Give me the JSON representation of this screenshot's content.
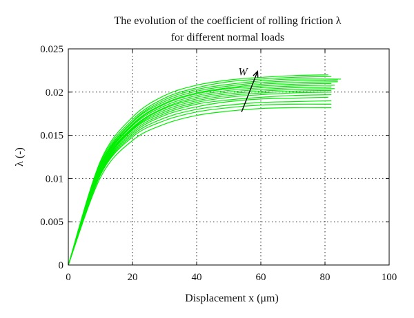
{
  "chart_data": {
    "type": "line",
    "title": [
      "The evolution of the coefficient of rolling friction λ",
      "for different normal loads"
    ],
    "xlabel": "Displacement x (μm)",
    "ylabel": "λ (-)",
    "xlim": [
      0,
      100
    ],
    "ylim": [
      0,
      0.025
    ],
    "x_ticks": [
      0,
      20,
      40,
      60,
      80,
      100
    ],
    "y_ticks": [
      0,
      0.005,
      0.01,
      0.015,
      0.02,
      0.025
    ],
    "x_tick_labels": [
      "0",
      "20",
      "40",
      "60",
      "80",
      "100"
    ],
    "y_tick_labels": [
      "0",
      "0.005",
      "0.01",
      "0.015",
      "0.02",
      "0.025"
    ],
    "grid": true,
    "line_color": "#00ee00",
    "annotation": {
      "text": "W",
      "arrow_from": [
        54,
        0.0177
      ],
      "arrow_to": [
        59,
        0.0224
      ]
    },
    "series": [
      {
        "values": [
          [
            0,
            0
          ],
          [
            10,
            0.0101
          ],
          [
            20,
            0.0144
          ],
          [
            30,
            0.0163
          ],
          [
            40,
            0.0173
          ],
          [
            50,
            0.0178
          ],
          [
            60,
            0.0181
          ],
          [
            70,
            0.0182
          ],
          [
            82,
            0.0182
          ]
        ]
      },
      {
        "values": [
          [
            0,
            0
          ],
          [
            10,
            0.0104
          ],
          [
            20,
            0.0148
          ],
          [
            30,
            0.0167
          ],
          [
            40,
            0.0177
          ],
          [
            50,
            0.0182
          ],
          [
            60,
            0.0185
          ],
          [
            70,
            0.0186
          ],
          [
            82,
            0.0186
          ]
        ]
      },
      {
        "values": [
          [
            0,
            0
          ],
          [
            10,
            0.0105
          ],
          [
            20,
            0.015
          ],
          [
            30,
            0.017
          ],
          [
            40,
            0.018
          ],
          [
            50,
            0.0185
          ],
          [
            60,
            0.0188
          ],
          [
            70,
            0.0189
          ],
          [
            82,
            0.019
          ]
        ]
      },
      {
        "values": [
          [
            0,
            0
          ],
          [
            10,
            0.0106
          ],
          [
            20,
            0.0152
          ],
          [
            30,
            0.0173
          ],
          [
            40,
            0.0183
          ],
          [
            50,
            0.0189
          ],
          [
            60,
            0.0192
          ],
          [
            70,
            0.0193
          ],
          [
            81,
            0.0194
          ]
        ]
      },
      {
        "values": [
          [
            0,
            0
          ],
          [
            10,
            0.0107
          ],
          [
            20,
            0.0154
          ],
          [
            30,
            0.0175
          ],
          [
            40,
            0.0186
          ],
          [
            50,
            0.0191
          ],
          [
            60,
            0.0194
          ],
          [
            70,
            0.0196
          ],
          [
            82,
            0.0197
          ]
        ]
      },
      {
        "values": [
          [
            0,
            0
          ],
          [
            10,
            0.0108
          ],
          [
            20,
            0.0156
          ],
          [
            30,
            0.0177
          ],
          [
            40,
            0.0188
          ],
          [
            50,
            0.0194
          ],
          [
            60,
            0.0197
          ],
          [
            70,
            0.0199
          ],
          [
            82,
            0.02
          ]
        ]
      },
      {
        "values": [
          [
            0,
            0
          ],
          [
            10,
            0.0109
          ],
          [
            20,
            0.0157
          ],
          [
            30,
            0.0179
          ],
          [
            40,
            0.019
          ],
          [
            50,
            0.0196
          ],
          [
            60,
            0.0199
          ],
          [
            70,
            0.0201
          ],
          [
            82,
            0.0202
          ]
        ]
      },
      {
        "values": [
          [
            0,
            0
          ],
          [
            10,
            0.011
          ],
          [
            20,
            0.0158
          ],
          [
            30,
            0.0181
          ],
          [
            40,
            0.0192
          ],
          [
            50,
            0.0198
          ],
          [
            60,
            0.0201
          ],
          [
            70,
            0.0203
          ],
          [
            83,
            0.0204
          ]
        ]
      },
      {
        "values": [
          [
            0,
            0
          ],
          [
            10,
            0.0111
          ],
          [
            20,
            0.0159
          ],
          [
            30,
            0.0182
          ],
          [
            40,
            0.0194
          ],
          [
            50,
            0.02
          ],
          [
            60,
            0.0203
          ],
          [
            70,
            0.0205
          ],
          [
            82,
            0.0206
          ]
        ]
      },
      {
        "values": [
          [
            0,
            0
          ],
          [
            10,
            0.0112
          ],
          [
            20,
            0.0161
          ],
          [
            30,
            0.0184
          ],
          [
            40,
            0.0196
          ],
          [
            50,
            0.0202
          ],
          [
            60,
            0.0205
          ],
          [
            70,
            0.0207
          ],
          [
            83,
            0.0208
          ]
        ]
      },
      {
        "values": [
          [
            0,
            0
          ],
          [
            10,
            0.0113
          ],
          [
            20,
            0.0162
          ],
          [
            30,
            0.0186
          ],
          [
            40,
            0.0198
          ],
          [
            50,
            0.0204
          ],
          [
            60,
            0.0207
          ],
          [
            70,
            0.0209
          ],
          [
            82,
            0.021
          ]
        ]
      },
      {
        "values": [
          [
            0,
            0
          ],
          [
            10,
            0.0114
          ],
          [
            20,
            0.0163
          ],
          [
            30,
            0.0187
          ],
          [
            40,
            0.0199
          ],
          [
            50,
            0.0205
          ],
          [
            60,
            0.0209
          ],
          [
            70,
            0.0211
          ],
          [
            84,
            0.0212
          ]
        ]
      },
      {
        "values": [
          [
            0,
            0
          ],
          [
            10,
            0.0115
          ],
          [
            20,
            0.0165
          ],
          [
            30,
            0.0189
          ],
          [
            40,
            0.0201
          ],
          [
            50,
            0.0207
          ],
          [
            60,
            0.0211
          ],
          [
            70,
            0.0213
          ],
          [
            84,
            0.0214
          ]
        ]
      },
      {
        "values": [
          [
            0,
            0
          ],
          [
            10,
            0.0116
          ],
          [
            20,
            0.0166
          ],
          [
            30,
            0.0191
          ],
          [
            40,
            0.0203
          ],
          [
            50,
            0.0209
          ],
          [
            60,
            0.0213
          ],
          [
            70,
            0.0215
          ],
          [
            85,
            0.0215
          ]
        ]
      },
      {
        "values": [
          [
            0,
            0
          ],
          [
            10,
            0.0118
          ],
          [
            20,
            0.0168
          ],
          [
            30,
            0.0193
          ],
          [
            40,
            0.0205
          ],
          [
            50,
            0.0212
          ],
          [
            60,
            0.0215
          ],
          [
            70,
            0.0217
          ],
          [
            82,
            0.0218
          ]
        ]
      },
      {
        "values": [
          [
            0,
            0
          ],
          [
            10,
            0.012
          ],
          [
            20,
            0.0171
          ],
          [
            30,
            0.0196
          ],
          [
            40,
            0.0208
          ],
          [
            50,
            0.0214
          ],
          [
            60,
            0.0217
          ],
          [
            70,
            0.0219
          ],
          [
            81,
            0.022
          ]
        ]
      }
    ]
  }
}
